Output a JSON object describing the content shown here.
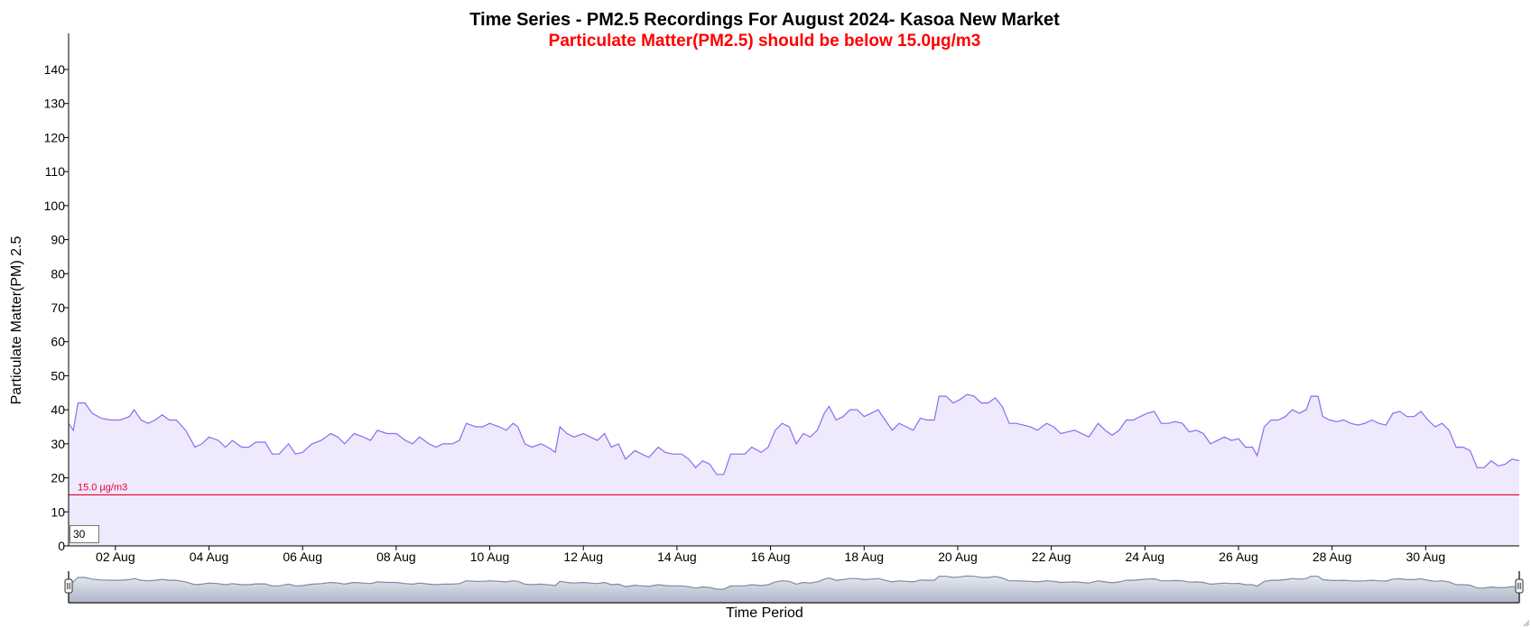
{
  "chart_data": {
    "type": "area",
    "title": "Time Series - PM2.5 Recordings For August 2024- Kasoa New Market",
    "subtitle": "Particulate Matter(PM2.5) should be below 15.0µg/m3",
    "xlabel": "Time Period",
    "ylabel": "Particulate Matter(PM) 2.5",
    "ylim": [
      0,
      150
    ],
    "xlim_days": [
      1.0,
      31.0
    ],
    "y_ticks": [
      0,
      10,
      20,
      30,
      40,
      50,
      60,
      70,
      80,
      90,
      100,
      110,
      120,
      130,
      140
    ],
    "x_ticks": [
      {
        "day": 2,
        "label": "02 Aug"
      },
      {
        "day": 4,
        "label": "04 Aug"
      },
      {
        "day": 6,
        "label": "06 Aug"
      },
      {
        "day": 8,
        "label": "08 Aug"
      },
      {
        "day": 10,
        "label": "10 Aug"
      },
      {
        "day": 12,
        "label": "12 Aug"
      },
      {
        "day": 14,
        "label": "14 Aug"
      },
      {
        "day": 16,
        "label": "16 Aug"
      },
      {
        "day": 18,
        "label": "18 Aug"
      },
      {
        "day": 20,
        "label": "20 Aug"
      },
      {
        "day": 22,
        "label": "22 Aug"
      },
      {
        "day": 24,
        "label": "24 Aug"
      },
      {
        "day": 26,
        "label": "26 Aug"
      },
      {
        "day": 28,
        "label": "28 Aug"
      },
      {
        "day": 30,
        "label": "30 Aug"
      }
    ],
    "threshold": {
      "value": 15.0,
      "label": "15.0 µg/m3",
      "color": "#e8002a"
    },
    "series": [
      {
        "color": "#8a6cf0",
        "fill": "#efe9fd",
        "points": [
          [
            1.0,
            36
          ],
          [
            1.1,
            34
          ],
          [
            1.2,
            42
          ],
          [
            1.35,
            42
          ],
          [
            1.5,
            39
          ],
          [
            1.7,
            37.5
          ],
          [
            1.9,
            37
          ],
          [
            2.1,
            37
          ],
          [
            2.3,
            38
          ],
          [
            2.4,
            40
          ],
          [
            2.55,
            37
          ],
          [
            2.7,
            36
          ],
          [
            2.85,
            37
          ],
          [
            3.0,
            38.5
          ],
          [
            3.15,
            37
          ],
          [
            3.3,
            37
          ],
          [
            3.5,
            34
          ],
          [
            3.7,
            29
          ],
          [
            3.85,
            30
          ],
          [
            4.0,
            32
          ],
          [
            4.2,
            31
          ],
          [
            4.35,
            29
          ],
          [
            4.5,
            31
          ],
          [
            4.7,
            29
          ],
          [
            4.85,
            29
          ],
          [
            5.0,
            30.5
          ],
          [
            5.2,
            30.5
          ],
          [
            5.35,
            27
          ],
          [
            5.5,
            27
          ],
          [
            5.7,
            30
          ],
          [
            5.85,
            27
          ],
          [
            6.0,
            27.5
          ],
          [
            6.2,
            30
          ],
          [
            6.4,
            31
          ],
          [
            6.6,
            33
          ],
          [
            6.75,
            32
          ],
          [
            6.9,
            30
          ],
          [
            7.1,
            33
          ],
          [
            7.3,
            32
          ],
          [
            7.45,
            31
          ],
          [
            7.6,
            34
          ],
          [
            7.8,
            33
          ],
          [
            8.0,
            33
          ],
          [
            8.2,
            31
          ],
          [
            8.35,
            30
          ],
          [
            8.5,
            32
          ],
          [
            8.7,
            30
          ],
          [
            8.85,
            29
          ],
          [
            9.0,
            30
          ],
          [
            9.2,
            30
          ],
          [
            9.35,
            31
          ],
          [
            9.5,
            36
          ],
          [
            9.7,
            35
          ],
          [
            9.85,
            35
          ],
          [
            10.0,
            36
          ],
          [
            10.2,
            35
          ],
          [
            10.35,
            34
          ],
          [
            10.5,
            36
          ],
          [
            10.6,
            35
          ],
          [
            10.75,
            30
          ],
          [
            10.9,
            29
          ],
          [
            11.1,
            30
          ],
          [
            11.3,
            28.5
          ],
          [
            11.4,
            27.5
          ],
          [
            11.5,
            35
          ],
          [
            11.65,
            33
          ],
          [
            11.8,
            32
          ],
          [
            12.0,
            33
          ],
          [
            12.15,
            32
          ],
          [
            12.3,
            31
          ],
          [
            12.45,
            33
          ],
          [
            12.6,
            29
          ],
          [
            12.75,
            30
          ],
          [
            12.9,
            25.5
          ],
          [
            13.1,
            28
          ],
          [
            13.25,
            27
          ],
          [
            13.4,
            26
          ],
          [
            13.6,
            29
          ],
          [
            13.75,
            27.5
          ],
          [
            13.9,
            27
          ],
          [
            14.1,
            27
          ],
          [
            14.25,
            25.5
          ],
          [
            14.4,
            23
          ],
          [
            14.55,
            25
          ],
          [
            14.7,
            24
          ],
          [
            14.85,
            21
          ],
          [
            15.0,
            21
          ],
          [
            15.15,
            27
          ],
          [
            15.3,
            27
          ],
          [
            15.45,
            27
          ],
          [
            15.6,
            29
          ],
          [
            15.8,
            27.5
          ],
          [
            15.95,
            29
          ],
          [
            16.1,
            34
          ],
          [
            16.25,
            36
          ],
          [
            16.4,
            35
          ],
          [
            16.55,
            30
          ],
          [
            16.7,
            33
          ],
          [
            16.85,
            32
          ],
          [
            17.0,
            34
          ],
          [
            17.15,
            39
          ],
          [
            17.25,
            41
          ],
          [
            17.4,
            37
          ],
          [
            17.55,
            38
          ],
          [
            17.7,
            40
          ],
          [
            17.85,
            40
          ],
          [
            18.0,
            38
          ],
          [
            18.15,
            39
          ],
          [
            18.3,
            40
          ],
          [
            18.45,
            37
          ],
          [
            18.6,
            34
          ],
          [
            18.75,
            36
          ],
          [
            18.9,
            35
          ],
          [
            19.05,
            34
          ],
          [
            19.2,
            37.5
          ],
          [
            19.35,
            37
          ],
          [
            19.5,
            37
          ],
          [
            19.6,
            44
          ],
          [
            19.75,
            44
          ],
          [
            19.9,
            42
          ],
          [
            20.05,
            43
          ],
          [
            20.2,
            44.5
          ],
          [
            20.35,
            44
          ],
          [
            20.5,
            42
          ],
          [
            20.65,
            42
          ],
          [
            20.8,
            43.5
          ],
          [
            20.95,
            41
          ],
          [
            21.1,
            36
          ],
          [
            21.25,
            36
          ],
          [
            21.4,
            35.5
          ],
          [
            21.55,
            35
          ],
          [
            21.7,
            34
          ],
          [
            21.9,
            36
          ],
          [
            22.05,
            35
          ],
          [
            22.2,
            33
          ],
          [
            22.35,
            33.5
          ],
          [
            22.5,
            34
          ],
          [
            22.65,
            33
          ],
          [
            22.8,
            32
          ],
          [
            23.0,
            36
          ],
          [
            23.15,
            34
          ],
          [
            23.3,
            32.5
          ],
          [
            23.45,
            34
          ],
          [
            23.6,
            37
          ],
          [
            23.75,
            37
          ],
          [
            23.9,
            38
          ],
          [
            24.05,
            39
          ],
          [
            24.2,
            39.5
          ],
          [
            24.35,
            36
          ],
          [
            24.5,
            36
          ],
          [
            24.65,
            36.5
          ],
          [
            24.8,
            36
          ],
          [
            24.95,
            33.5
          ],
          [
            25.1,
            34
          ],
          [
            25.25,
            33
          ],
          [
            25.4,
            30
          ],
          [
            25.55,
            31
          ],
          [
            25.7,
            32
          ],
          [
            25.85,
            31
          ],
          [
            26.0,
            31.5
          ],
          [
            26.15,
            29
          ],
          [
            26.3,
            29
          ],
          [
            26.4,
            26.5
          ],
          [
            26.55,
            35
          ],
          [
            26.7,
            37
          ],
          [
            26.85,
            37
          ],
          [
            27.0,
            38
          ],
          [
            27.15,
            40
          ],
          [
            27.3,
            39
          ],
          [
            27.45,
            40
          ],
          [
            27.55,
            44
          ],
          [
            27.7,
            44
          ],
          [
            27.8,
            38
          ],
          [
            27.95,
            37
          ],
          [
            28.1,
            36.5
          ],
          [
            28.25,
            37
          ],
          [
            28.4,
            36
          ],
          [
            28.55,
            35.5
          ],
          [
            28.7,
            36
          ],
          [
            28.85,
            37
          ],
          [
            29.0,
            36
          ],
          [
            29.15,
            35.5
          ],
          [
            29.3,
            39
          ],
          [
            29.45,
            39.5
          ],
          [
            29.6,
            38
          ],
          [
            29.75,
            38
          ],
          [
            29.9,
            39.5
          ],
          [
            30.05,
            37
          ],
          [
            30.2,
            35
          ],
          [
            30.35,
            36
          ],
          [
            30.5,
            34
          ],
          [
            30.65,
            29
          ],
          [
            30.8,
            29
          ],
          [
            30.95,
            28
          ],
          [
            31.1,
            23
          ],
          [
            31.25,
            23
          ],
          [
            31.4,
            25
          ],
          [
            31.55,
            23.5
          ],
          [
            31.7,
            24
          ],
          [
            31.85,
            25.5
          ],
          [
            32.0,
            25
          ]
        ]
      }
    ],
    "navigator": {
      "fill": "#aeb5c8",
      "stroke": "#7f8aa5"
    }
  },
  "controls": {
    "window_input_value": "30"
  }
}
